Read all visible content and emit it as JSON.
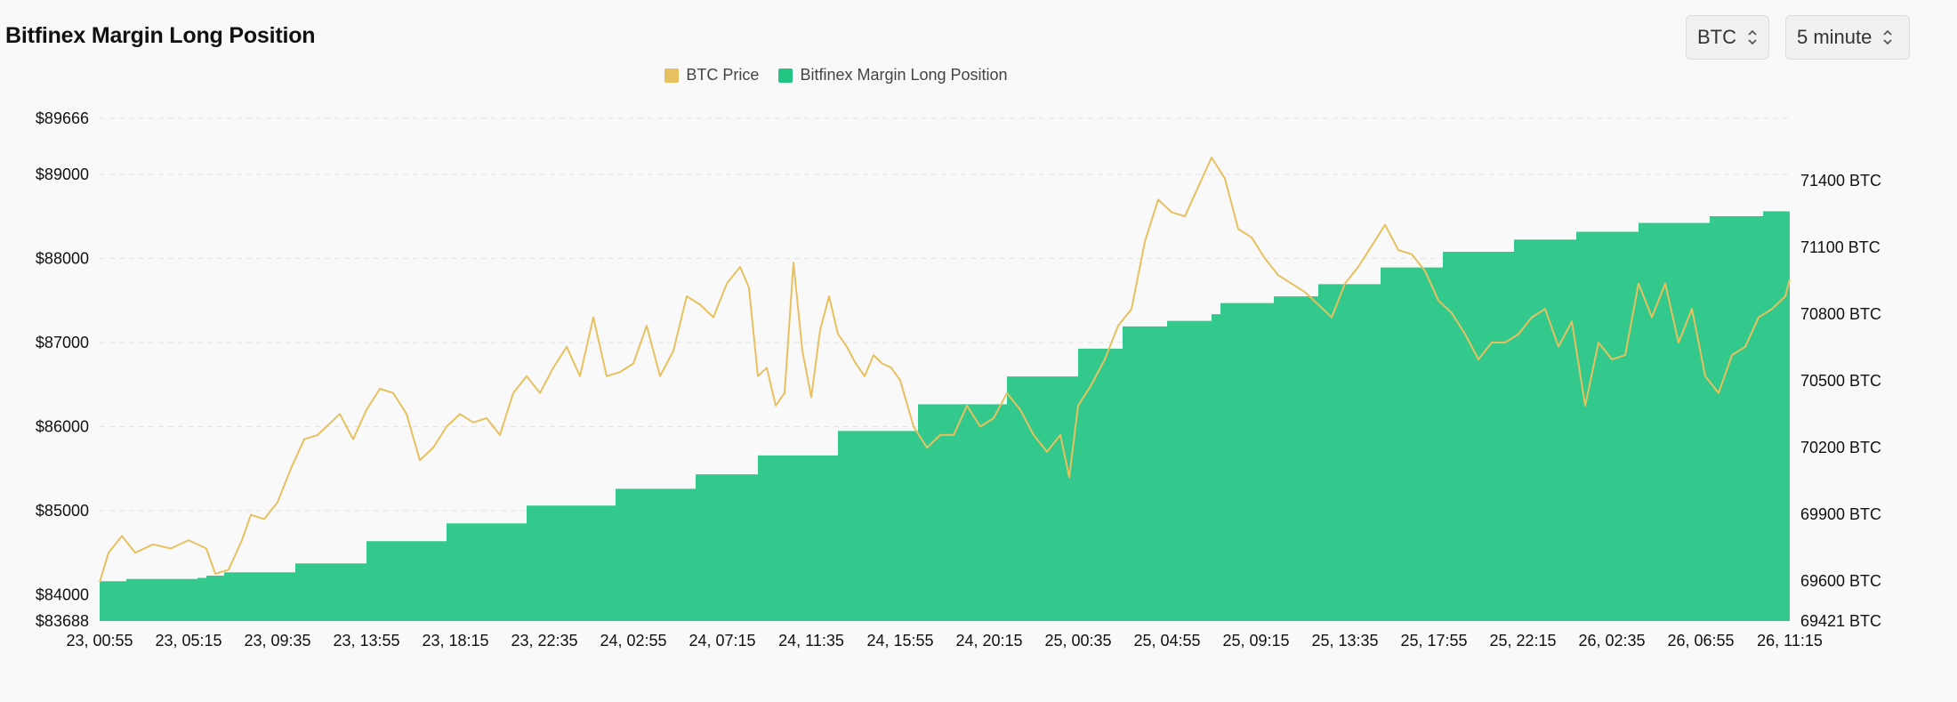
{
  "header": {
    "title": "Bitfinex Margin Long Position",
    "asset_select": "BTC",
    "interval_select": "5 minute"
  },
  "legend": [
    {
      "label": "BTC Price",
      "color": "#e7c15f"
    },
    {
      "label": "Bitfinex Margin Long Position",
      "color": "#22c482"
    }
  ],
  "chart_data": {
    "type": "area+line",
    "title": "Bitfinex Margin Long Position",
    "x_ticks": [
      "23, 00:55",
      "23, 05:15",
      "23, 09:35",
      "23, 13:55",
      "23, 18:15",
      "23, 22:35",
      "24, 02:55",
      "24, 07:15",
      "24, 11:35",
      "24, 15:55",
      "24, 20:15",
      "25, 00:35",
      "25, 04:55",
      "25, 09:15",
      "25, 13:35",
      "25, 17:55",
      "25, 22:15",
      "26, 02:35",
      "26, 06:55",
      "26, 11:15"
    ],
    "left_axis": {
      "name": "BTC Price",
      "range": [
        83688,
        89666
      ],
      "ticks": [
        83688,
        84000,
        85000,
        86000,
        87000,
        88000,
        89000,
        89666
      ],
      "tick_labels": [
        "$83688",
        "$84000",
        "$85000",
        "$86000",
        "$87000",
        "$88000",
        "$89000",
        "$89666"
      ]
    },
    "right_axis": {
      "name": "Bitfinex Margin Long Position",
      "range": [
        69421,
        71600
      ],
      "ticks": [
        69421,
        69600,
        69900,
        70200,
        70500,
        70800,
        71100,
        71400
      ],
      "tick_labels": [
        "69421 BTC",
        "69600 BTC",
        "69900 BTC",
        "70200 BTC",
        "70500 BTC",
        "70800 BTC",
        "71100 BTC",
        "71400 BTC"
      ]
    },
    "series": [
      {
        "name": "Bitfinex Margin Long Position",
        "type": "area",
        "axis": "right",
        "color": "#22c482",
        "x_index": [
          0,
          0.3,
          1.1,
          1.2,
          1.4,
          2.2,
          3.0,
          3.9,
          4.8,
          5.8,
          6.7,
          7.4,
          8.3,
          9.2,
          10.2,
          11.0,
          11.5,
          12.0,
          12.5,
          12.6,
          13.2,
          13.7,
          14.4,
          15.1,
          15.9,
          16.6,
          17.3,
          18.1,
          18.7,
          19.0
        ],
        "values": [
          69600,
          69610,
          69615,
          69625,
          69640,
          69680,
          69780,
          69860,
          69940,
          70015,
          70080,
          70165,
          70275,
          70395,
          70520,
          70645,
          70745,
          70770,
          70800,
          70850,
          70880,
          70935,
          71010,
          71080,
          71135,
          71170,
          71210,
          71240,
          71262,
          71268
        ]
      },
      {
        "name": "BTC Price",
        "type": "line",
        "axis": "left",
        "color": "#e7c15f",
        "x_index": [
          0,
          0.1,
          0.25,
          0.4,
          0.6,
          0.8,
          1.0,
          1.2,
          1.3,
          1.45,
          1.6,
          1.7,
          1.85,
          2.0,
          2.15,
          2.3,
          2.45,
          2.55,
          2.7,
          2.85,
          3.0,
          3.15,
          3.3,
          3.45,
          3.6,
          3.75,
          3.9,
          4.05,
          4.2,
          4.35,
          4.5,
          4.65,
          4.8,
          4.95,
          5.1,
          5.25,
          5.4,
          5.55,
          5.7,
          5.85,
          6.0,
          6.15,
          6.3,
          6.45,
          6.6,
          6.75,
          6.9,
          7.05,
          7.2,
          7.3,
          7.4,
          7.5,
          7.6,
          7.7,
          7.8,
          7.9,
          8.0,
          8.1,
          8.2,
          8.3,
          8.4,
          8.5,
          8.6,
          8.7,
          8.8,
          8.9,
          9.0,
          9.15,
          9.3,
          9.45,
          9.6,
          9.75,
          9.9,
          10.05,
          10.2,
          10.35,
          10.5,
          10.65,
          10.8,
          10.9,
          11.0,
          11.15,
          11.3,
          11.45,
          11.6,
          11.75,
          11.9,
          12.05,
          12.2,
          12.35,
          12.5,
          12.65,
          12.8,
          12.95,
          13.1,
          13.25,
          13.4,
          13.55,
          13.7,
          13.85,
          14.0,
          14.15,
          14.3,
          14.45,
          14.6,
          14.75,
          14.9,
          15.05,
          15.2,
          15.35,
          15.5,
          15.65,
          15.8,
          15.95,
          16.1,
          16.25,
          16.4,
          16.55,
          16.7,
          16.85,
          17.0,
          17.15,
          17.3,
          17.45,
          17.6,
          17.75,
          17.9,
          18.05,
          18.2,
          18.35,
          18.5,
          18.65,
          18.8,
          18.95,
          19.0
        ],
        "values": [
          84150,
          84500,
          84700,
          84500,
          84600,
          84550,
          84650,
          84550,
          84250,
          84300,
          84650,
          84950,
          84900,
          85100,
          85500,
          85850,
          85900,
          86000,
          86150,
          85850,
          86200,
          86450,
          86400,
          86150,
          85600,
          85750,
          86000,
          86150,
          86050,
          86100,
          85900,
          86400,
          86600,
          86400,
          86700,
          86950,
          86600,
          87300,
          86600,
          86650,
          86750,
          87200,
          86600,
          86900,
          87550,
          87450,
          87300,
          87700,
          87900,
          87650,
          86600,
          86700,
          86250,
          86400,
          87950,
          86900,
          86350,
          87150,
          87550,
          87100,
          86950,
          86750,
          86600,
          86850,
          86750,
          86700,
          86550,
          86000,
          85750,
          85900,
          85900,
          86250,
          86000,
          86100,
          86400,
          86200,
          85900,
          85700,
          85900,
          85400,
          86250,
          86500,
          86800,
          87200,
          87400,
          88200,
          88700,
          88550,
          88500,
          88850,
          89200,
          88950,
          88350,
          88250,
          88000,
          87800,
          87700,
          87600,
          87450,
          87300,
          87700,
          87900,
          88150,
          88400,
          88100,
          88050,
          87850,
          87500,
          87350,
          87100,
          86800,
          87000,
          87000,
          87100,
          87300,
          87400,
          86950,
          87250,
          86250,
          87000,
          86800,
          86850,
          87700,
          87300,
          87700,
          87000,
          87400,
          86600,
          86400,
          86850,
          86950,
          87300,
          87400,
          87550,
          87750
        ]
      }
    ],
    "grid": "horizontal dashed",
    "legend_position": "top-center"
  }
}
